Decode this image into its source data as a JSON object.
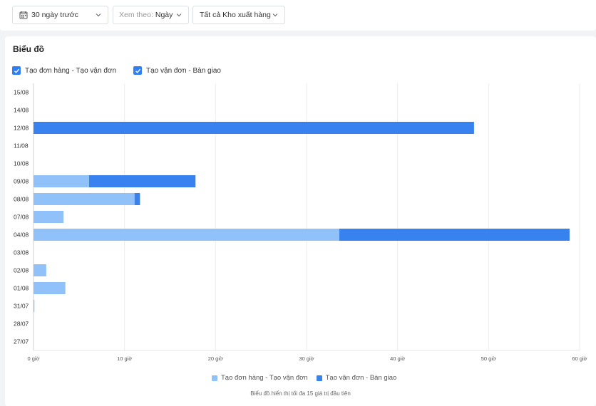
{
  "filters": {
    "date_range": "30 ngày trước",
    "view_by_label": "Xem theo:",
    "view_by_value": "Ngày",
    "warehouse": "Tất cả Kho xuất hàng"
  },
  "card": {
    "title": "Biểu đồ",
    "toggles": [
      "Tạo đơn hàng - Tạo vận đơn",
      "Tạo vận đơn - Bàn giao"
    ],
    "note": "Biểu đồ hiển thị tối đa 15 giá trị đầu tiên"
  },
  "colors": {
    "series1": "#90c2f9",
    "series2": "#3882f0",
    "checkbox": "#2f7ef5"
  },
  "chart_data": {
    "type": "bar",
    "orientation": "horizontal",
    "stacked": true,
    "categories": [
      "15/08",
      "14/08",
      "12/08",
      "11/08",
      "10/08",
      "09/08",
      "08/08",
      "07/08",
      "04/08",
      "03/08",
      "02/08",
      "01/08",
      "31/07",
      "28/07",
      "27/07"
    ],
    "series": [
      {
        "name": "Tạo đơn hàng - Tạo vận đơn",
        "values": [
          0,
          0,
          0,
          0,
          0,
          6.1,
          11.1,
          3.3,
          33.6,
          0,
          1.4,
          3.5,
          0.1,
          0,
          0
        ]
      },
      {
        "name": "Tạo vận đơn - Bàn giao",
        "values": [
          0,
          0,
          48.4,
          0,
          0,
          11.7,
          0.6,
          0,
          25.3,
          0,
          0,
          0,
          0,
          0,
          0
        ]
      }
    ],
    "xticks": [
      "0 giờ",
      "10 giờ",
      "20 giờ",
      "30 giờ",
      "40 giờ",
      "50 giờ",
      "60 giờ"
    ],
    "xlim": [
      0,
      60
    ],
    "grid": true,
    "legend_position": "bottom"
  }
}
